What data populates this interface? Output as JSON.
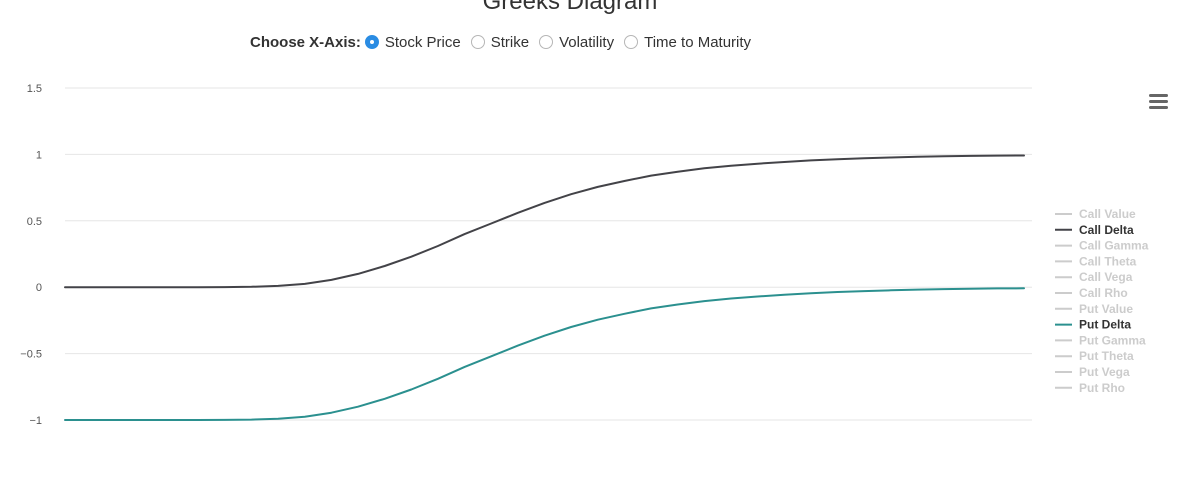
{
  "chart_data": {
    "type": "line",
    "title": "Greeks Diagram",
    "xlabel": "",
    "ylabel": "",
    "ylim": [
      -1,
      1.5
    ],
    "yticks": [
      "1.5",
      "1",
      "0.5",
      "0",
      "−0.5",
      "−1"
    ],
    "grid": true,
    "legend_position": "right",
    "series": [
      {
        "name": "Call Value",
        "visible": false,
        "color": "#cccccc",
        "values": []
      },
      {
        "name": "Call Delta",
        "visible": true,
        "color": "#434348",
        "values": [
          0.0,
          0.0,
          0.0,
          0.0,
          0.0,
          0.0,
          0.001,
          0.003,
          0.01,
          0.025,
          0.055,
          0.1,
          0.16,
          0.23,
          0.31,
          0.4,
          0.48,
          0.56,
          0.635,
          0.7,
          0.755,
          0.8,
          0.84,
          0.87,
          0.895,
          0.915,
          0.93,
          0.943,
          0.955,
          0.964,
          0.971,
          0.977,
          0.982,
          0.986,
          0.989,
          0.991,
          0.992
        ]
      },
      {
        "name": "Call Gamma",
        "visible": false,
        "color": "#cccccc",
        "values": []
      },
      {
        "name": "Call Theta",
        "visible": false,
        "color": "#cccccc",
        "values": []
      },
      {
        "name": "Call Vega",
        "visible": false,
        "color": "#cccccc",
        "values": []
      },
      {
        "name": "Call Rho",
        "visible": false,
        "color": "#cccccc",
        "values": []
      },
      {
        "name": "Put Value",
        "visible": false,
        "color": "#cccccc",
        "values": []
      },
      {
        "name": "Put Delta",
        "visible": true,
        "color": "#2b908f",
        "values": [
          -1.0,
          -1.0,
          -1.0,
          -1.0,
          -1.0,
          -1.0,
          -0.999,
          -0.997,
          -0.99,
          -0.975,
          -0.945,
          -0.9,
          -0.84,
          -0.77,
          -0.69,
          -0.6,
          -0.52,
          -0.44,
          -0.365,
          -0.3,
          -0.245,
          -0.2,
          -0.16,
          -0.13,
          -0.105,
          -0.085,
          -0.07,
          -0.057,
          -0.045,
          -0.036,
          -0.029,
          -0.023,
          -0.018,
          -0.014,
          -0.011,
          -0.009,
          -0.008
        ]
      },
      {
        "name": "Put Gamma",
        "visible": false,
        "color": "#cccccc",
        "values": []
      },
      {
        "name": "Put Theta",
        "visible": false,
        "color": "#cccccc",
        "values": []
      },
      {
        "name": "Put Vega",
        "visible": false,
        "color": "#cccccc",
        "values": []
      },
      {
        "name": "Put Rho",
        "visible": false,
        "color": "#cccccc",
        "values": []
      }
    ]
  },
  "axis_chooser": {
    "label": "Choose X-Axis:",
    "options": [
      {
        "label": "Stock Price",
        "selected": true
      },
      {
        "label": "Strike",
        "selected": false
      },
      {
        "label": "Volatility",
        "selected": false
      },
      {
        "label": "Time to Maturity",
        "selected": false
      }
    ]
  },
  "colors": {
    "accent": "#2a8ce3",
    "call_delta": "#434348",
    "put_delta": "#2b908f",
    "hidden_series": "#cccccc",
    "grid": "#e6e6e6"
  },
  "menu": {
    "icon": "hamburger-menu-icon"
  }
}
